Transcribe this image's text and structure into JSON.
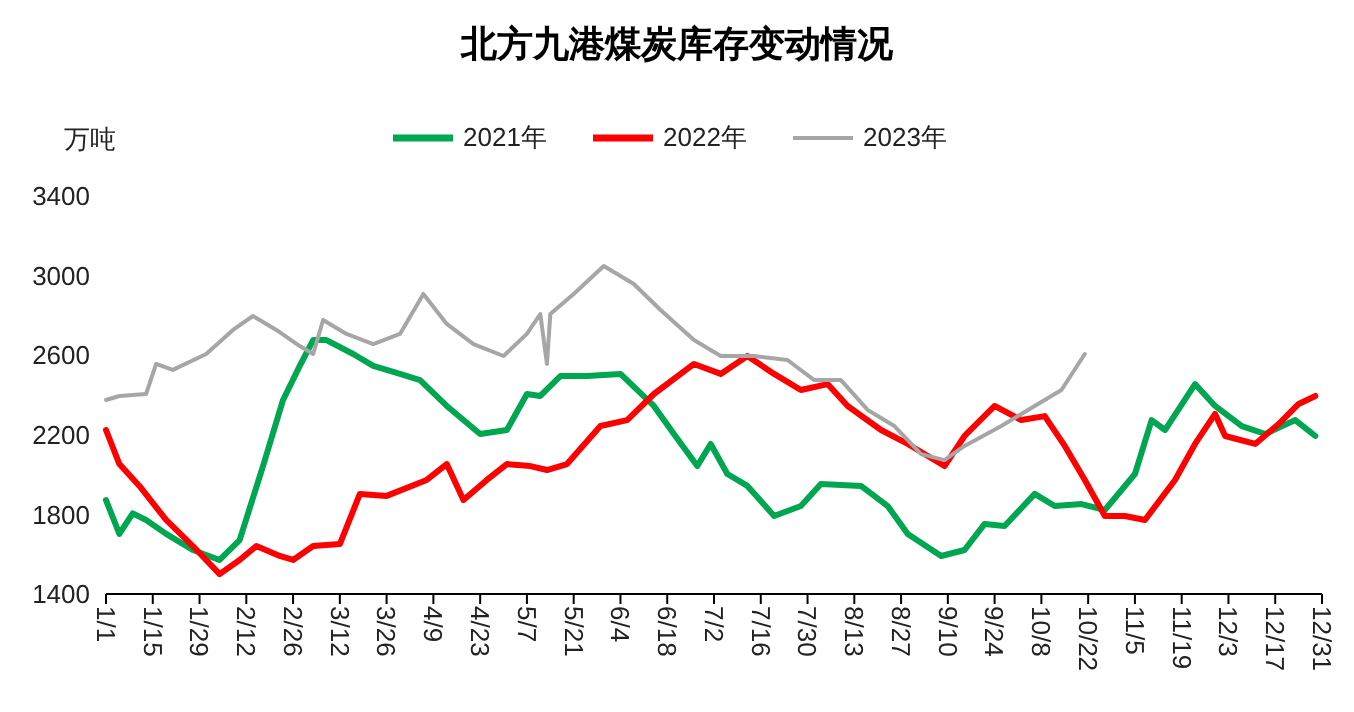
{
  "chart_data": {
    "type": "line",
    "title": "北方九港煤炭库存变动情况",
    "ylabel": "万吨",
    "legend": "top",
    "grid": false,
    "marker": "none",
    "line_style": "solid",
    "xlim": [
      "--01-01",
      "--12-31"
    ],
    "xticks": [
      {
        "value": "--01-01",
        "label": "1/1"
      },
      {
        "value": "--01-15",
        "label": "1/15"
      },
      {
        "value": "--01-29",
        "label": "1/29"
      },
      {
        "value": "--02-12",
        "label": "2/12"
      },
      {
        "value": "--02-26",
        "label": "2/26"
      },
      {
        "value": "--03-12",
        "label": "3/12"
      },
      {
        "value": "--03-26",
        "label": "3/26"
      },
      {
        "value": "--04-09",
        "label": "4/9"
      },
      {
        "value": "--04-23",
        "label": "4/23"
      },
      {
        "value": "--05-07",
        "label": "5/7"
      },
      {
        "value": "--05-21",
        "label": "5/21"
      },
      {
        "value": "--06-04",
        "label": "6/4"
      },
      {
        "value": "--06-18",
        "label": "6/18"
      },
      {
        "value": "--07-02",
        "label": "7/2"
      },
      {
        "value": "--07-16",
        "label": "7/16"
      },
      {
        "value": "--07-30",
        "label": "7/30"
      },
      {
        "value": "--08-13",
        "label": "8/13"
      },
      {
        "value": "--08-27",
        "label": "8/27"
      },
      {
        "value": "--09-10",
        "label": "9/10"
      },
      {
        "value": "--09-24",
        "label": "9/24"
      },
      {
        "value": "--10-08",
        "label": "10/8"
      },
      {
        "value": "--10-22",
        "label": "10/22"
      },
      {
        "value": "--11-05",
        "label": "11/5"
      },
      {
        "value": "--11-19",
        "label": "11/19"
      },
      {
        "value": "--12-03",
        "label": "12/3"
      },
      {
        "value": "--12-17",
        "label": "12/17"
      },
      {
        "value": "--12-31",
        "label": "12/31"
      }
    ],
    "ylim": [
      1400,
      3400
    ],
    "yticks": [
      1400,
      1800,
      2200,
      2600,
      3000,
      3400
    ],
    "series": [
      {
        "name": "2021年",
        "color": "#00a650",
        "x": [
          "--01-01",
          "--01-05",
          "--01-09",
          "--01-13",
          "--01-19",
          "--01-27",
          "--02-04",
          "--02-10",
          "--02-17",
          "--02-23",
          "--02-28",
          "--03-04",
          "--03-08",
          "--03-16",
          "--03-22",
          "--03-30",
          "--04-05",
          "--04-13",
          "--04-23",
          "--05-01",
          "--05-07",
          "--05-11",
          "--05-17",
          "--05-25",
          "--06-04",
          "--06-14",
          "--06-20",
          "--06-27",
          "--07-01",
          "--07-06",
          "--07-12",
          "--07-20",
          "--07-28",
          "--08-03",
          "--08-15",
          "--08-23",
          "--08-29",
          "--09-08",
          "--09-15",
          "--09-21",
          "--09-27",
          "--10-06",
          "--10-12",
          "--10-20",
          "--10-27",
          "--11-05",
          "--11-10",
          "--11-14",
          "--11-23",
          "--11-29",
          "--12-07",
          "--12-14",
          "--12-23",
          "--12-29"
        ],
        "values": [
          1872,
          1702,
          1805,
          1772,
          1702,
          1621,
          1571,
          1671,
          2043,
          2375,
          2546,
          2676,
          2676,
          2606,
          2546,
          2506,
          2475,
          2345,
          2204,
          2224,
          2405,
          2395,
          2495,
          2495,
          2506,
          2345,
          2204,
          2043,
          2154,
          2003,
          1943,
          1792,
          1842,
          1953,
          1943,
          1842,
          1702,
          1591,
          1621,
          1752,
          1742,
          1903,
          1842,
          1852,
          1822,
          2003,
          2274,
          2224,
          2455,
          2345,
          2244,
          2204,
          2274,
          2194
        ]
      },
      {
        "name": "2022年",
        "color": "#ff0000",
        "x": [
          "--01-01",
          "--01-05",
          "--01-11",
          "--01-19",
          "--01-27",
          "--02-04",
          "--02-10",
          "--02-15",
          "--02-22",
          "--02-26",
          "--03-04",
          "--03-12",
          "--03-18",
          "--03-26",
          "--04-07",
          "--04-13",
          "--04-18",
          "--04-25",
          "--05-01",
          "--05-08",
          "--05-13",
          "--05-19",
          "--05-29",
          "--06-06",
          "--06-14",
          "--06-26",
          "--07-04",
          "--07-12",
          "--07-20",
          "--07-28",
          "--08-05",
          "--08-11",
          "--08-21",
          "--08-29",
          "--09-09",
          "--09-15",
          "--09-24",
          "--10-02",
          "--10-09",
          "--10-15",
          "--10-21",
          "--10-27",
          "--11-02",
          "--11-08",
          "--11-17",
          "--11-23",
          "--11-29",
          "--12-02",
          "--12-11",
          "--12-18",
          "--12-24",
          "--12-29"
        ],
        "values": [
          2224,
          2053,
          1943,
          1772,
          1641,
          1500,
          1571,
          1641,
          1591,
          1571,
          1641,
          1651,
          1903,
          1893,
          1973,
          2053,
          1872,
          1973,
          2053,
          2043,
          2023,
          2053,
          2244,
          2274,
          2405,
          2556,
          2506,
          2596,
          2506,
          2425,
          2455,
          2345,
          2224,
          2154,
          2043,
          2194,
          2345,
          2274,
          2294,
          2144,
          1973,
          1792,
          1792,
          1772,
          1973,
          2154,
          2305,
          2194,
          2154,
          2254,
          2355,
          2395
        ]
      },
      {
        "name": "2023年",
        "color": "#a6a6a6",
        "x": [
          "--01-01",
          "--01-05",
          "--01-13",
          "--01-16",
          "--01-21",
          "--01-31",
          "--02-08",
          "--02-14",
          "--02-21",
          "--02-28",
          "--03-04",
          "--03-07",
          "--03-14",
          "--03-22",
          "--03-30",
          "--04-06",
          "--04-13",
          "--04-21",
          "--04-30",
          "--05-07",
          "--05-11",
          "--05-13",
          "--05-14",
          "--05-21",
          "--05-30",
          "--06-08",
          "--06-16",
          "--06-26",
          "--07-04",
          "--07-14",
          "--07-24",
          "--08-01",
          "--08-09",
          "--08-17",
          "--08-25",
          "--09-02",
          "--09-09",
          "--09-15",
          "--09-26",
          "--10-06",
          "--10-14",
          "--10-21"
        ],
        "values": [
          2375,
          2395,
          2405,
          2556,
          2526,
          2606,
          2727,
          2797,
          2727,
          2646,
          2606,
          2777,
          2707,
          2656,
          2707,
          2908,
          2757,
          2656,
          2596,
          2707,
          2807,
          2556,
          2807,
          2908,
          3048,
          2958,
          2827,
          2676,
          2596,
          2596,
          2576,
          2475,
          2475,
          2325,
          2244,
          2103,
          2073,
          2144,
          2244,
          2345,
          2425,
          2606
        ]
      }
    ]
  }
}
